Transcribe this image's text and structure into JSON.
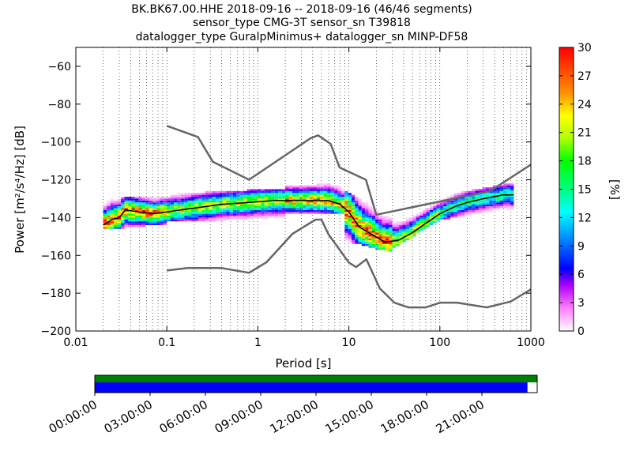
{
  "title": {
    "line1": "BK.BK67.00.HHE   2018-09-16 -- 2018-09-16  (46/46 segments)",
    "line2": "sensor_type CMG-3T sensor_sn T39818",
    "line3": "datalogger_type GuralpMinimus+ datalogger_sn MINP-DF58"
  },
  "chart_data": {
    "type": "heatmap",
    "xlabel": "Period [s]",
    "ylabel": "Power [m²/s⁴/Hz] [dB]",
    "x_scale": "log",
    "xlim": [
      0.01,
      1000
    ],
    "ylim": [
      -200,
      -50
    ],
    "x_ticks": [
      "0.01",
      "0.1",
      "1",
      "10",
      "100",
      "1000"
    ],
    "y_ticks": [
      "−200",
      "−180",
      "−160",
      "−140",
      "−120",
      "−100",
      "−80",
      "−60"
    ],
    "colorbar": {
      "label": "[%]",
      "range": [
        0,
        30
      ],
      "ticks": [
        "0",
        "3",
        "6",
        "9",
        "12",
        "15",
        "18",
        "21",
        "24",
        "27",
        "30"
      ]
    },
    "noise_models": [
      {
        "name": "NHNM",
        "points": [
          [
            0.1,
            -91.5
          ],
          [
            0.22,
            -97.4
          ],
          [
            0.32,
            -110.5
          ],
          [
            0.8,
            -120
          ],
          [
            3.8,
            -98
          ],
          [
            4.6,
            -96.5
          ],
          [
            6.3,
            -101
          ],
          [
            7.9,
            -113.5
          ],
          [
            15.4,
            -120
          ],
          [
            20,
            -138.5
          ],
          [
            354.8,
            -126
          ],
          [
            1000,
            -112
          ]
        ]
      },
      {
        "name": "NLNM",
        "points": [
          [
            0.1,
            -168
          ],
          [
            0.17,
            -166.7
          ],
          [
            0.4,
            -166.7
          ],
          [
            0.8,
            -169.2
          ],
          [
            1.24,
            -163.7
          ],
          [
            2.4,
            -148.6
          ],
          [
            4.3,
            -141.1
          ],
          [
            5,
            -141.1
          ],
          [
            6,
            -149
          ],
          [
            10,
            -163.8
          ],
          [
            12,
            -166.2
          ],
          [
            15.6,
            -162.1
          ],
          [
            21.9,
            -177.5
          ],
          [
            31.6,
            -185
          ],
          [
            45,
            -187.5
          ],
          [
            70,
            -187.5
          ],
          [
            101,
            -185
          ],
          [
            154,
            -185
          ],
          [
            328,
            -187.5
          ],
          [
            600,
            -184.4
          ],
          [
            1000,
            -178
          ]
        ]
      }
    ],
    "mode_curve": [
      [
        0.02,
        -144
      ],
      [
        0.025,
        -141
      ],
      [
        0.03,
        -140
      ],
      [
        0.035,
        -136
      ],
      [
        0.05,
        -137
      ],
      [
        0.07,
        -138
      ],
      [
        0.1,
        -137
      ],
      [
        0.2,
        -135
      ],
      [
        0.4,
        -133
      ],
      [
        0.8,
        -132
      ],
      [
        1.5,
        -131
      ],
      [
        3,
        -131
      ],
      [
        6,
        -131
      ],
      [
        8,
        -133
      ],
      [
        10,
        -137
      ],
      [
        13,
        -145
      ],
      [
        18,
        -149
      ],
      [
        25,
        -153
      ],
      [
        35,
        -152
      ],
      [
        50,
        -148
      ],
      [
        70,
        -143
      ],
      [
        100,
        -138
      ],
      [
        150,
        -134
      ],
      [
        200,
        -132
      ],
      [
        300,
        -130
      ],
      [
        500,
        -128
      ],
      [
        650,
        -128
      ]
    ],
    "density_bands": [
      {
        "x": [
          0.02,
          0.1
        ],
        "ybot": [
          -146,
          -143
        ],
        "ytop": [
          -129,
          -130
        ],
        "peak": 27
      },
      {
        "x": [
          0.1,
          2
        ],
        "ybot": [
          -142,
          -140
        ],
        "ytop": [
          -128,
          -125
        ],
        "peak": 21
      },
      {
        "x": [
          2,
          9
        ],
        "ybot": [
          -138,
          -137
        ],
        "ytop": [
          -124,
          -122
        ],
        "peak": 24
      },
      {
        "x": [
          9,
          30
        ],
        "ybot": [
          -152,
          -158
        ],
        "ytop": [
          -126,
          -138
        ],
        "peak": 27
      },
      {
        "x": [
          30,
          100
        ],
        "ybot": [
          -156,
          -141
        ],
        "ytop": [
          -140,
          -130
        ],
        "peak": 21
      },
      {
        "x": [
          100,
          650
        ],
        "ybot": [
          -141,
          -135
        ],
        "ytop": [
          -129,
          -122
        ],
        "peak": 15
      }
    ]
  },
  "timeline": {
    "labels": [
      "00:00:00",
      "03:00:00",
      "06:00:00",
      "09:00:00",
      "12:00:00",
      "15:00:00",
      "18:00:00",
      "21:00:00"
    ],
    "green_fraction": 1.0,
    "blue_fraction": 0.978
  },
  "colors": {
    "noise_model": "#666666",
    "mode": "#000000",
    "timeline_green": "#008000",
    "timeline_blue": "#0000ff"
  }
}
